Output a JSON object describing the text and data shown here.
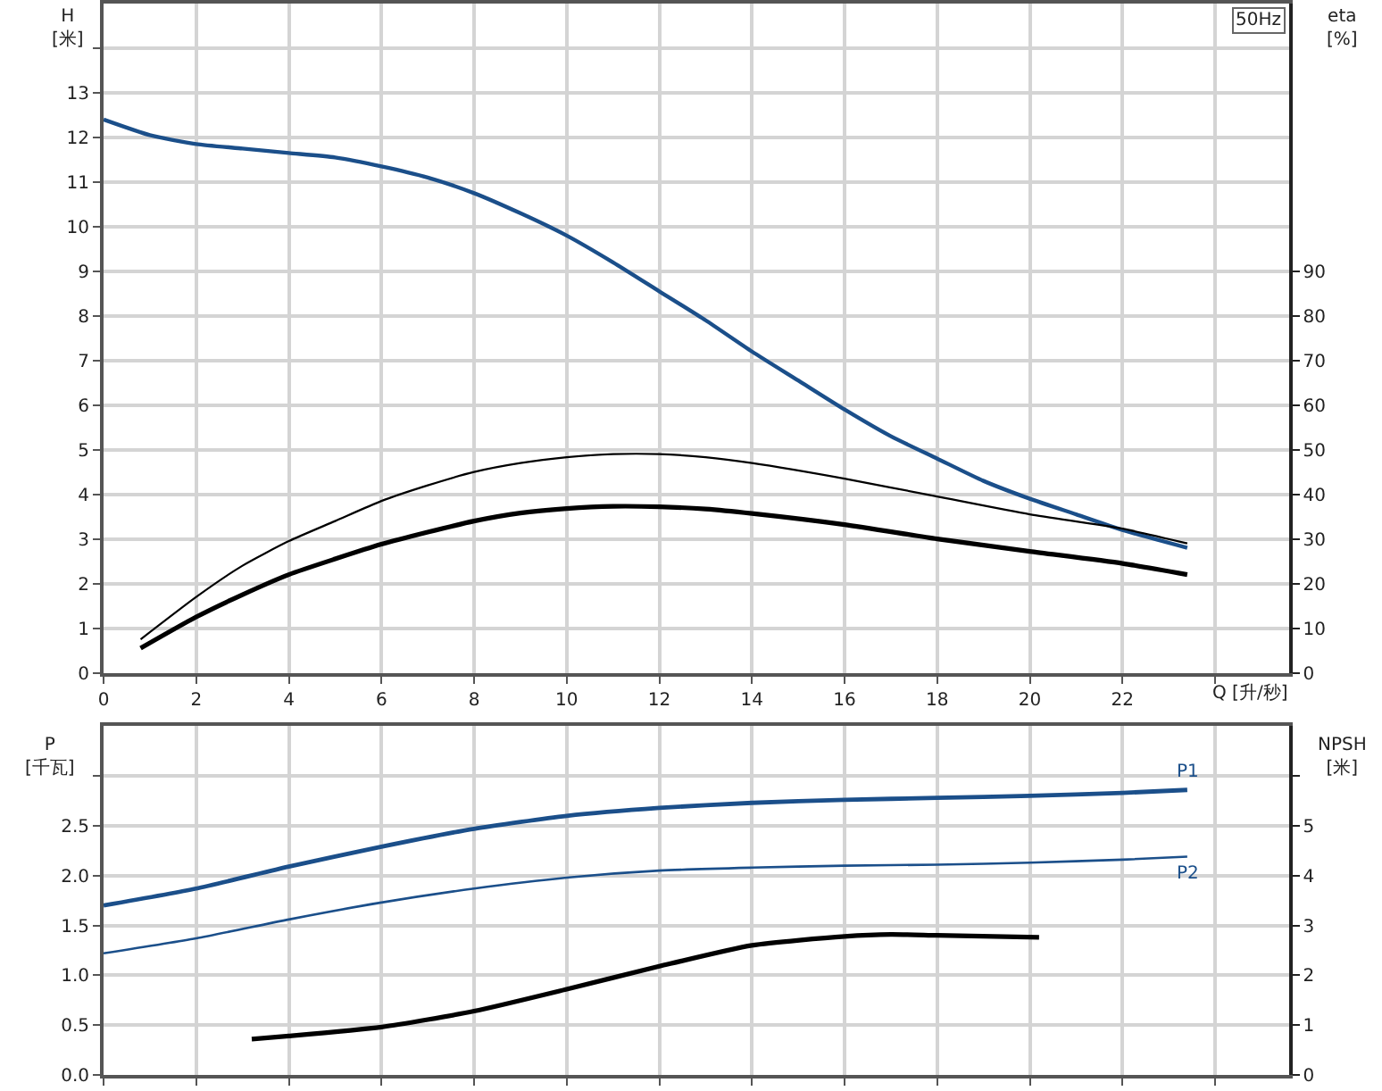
{
  "chart_data": [
    {
      "type": "line",
      "xlabel": "Q [升/秒]",
      "ylabel": "H\n[米]",
      "y2label": "eta\n[%]",
      "annotations": [
        "50Hz"
      ],
      "xlim": [
        0,
        25.6
      ],
      "xticks": [
        0,
        2,
        4,
        6,
        8,
        10,
        12,
        14,
        16,
        18,
        20,
        22,
        {
          "value": 24,
          "label": null
        }
      ],
      "ylim": [
        0,
        15
      ],
      "yticks": [
        0,
        1,
        2,
        3,
        4,
        5,
        6,
        7,
        8,
        9,
        10,
        11,
        12,
        13,
        {
          "value": 14,
          "label": null
        }
      ],
      "y2lim": [
        0,
        150
      ],
      "y2ticks": [
        0,
        10,
        20,
        30,
        40,
        50,
        60,
        70,
        80,
        90
      ],
      "grid": true,
      "series": [
        {
          "color": "#1b4f8a",
          "x": [
            0,
            1,
            2,
            3,
            4,
            5,
            6,
            7,
            8,
            9,
            10,
            11,
            12,
            13,
            14,
            15,
            16,
            17,
            18,
            19,
            20,
            21,
            22,
            23.4
          ],
          "values": [
            12.4,
            12.05,
            11.85,
            11.75,
            11.65,
            11.55,
            11.35,
            11.1,
            10.75,
            10.3,
            9.8,
            9.2,
            8.55,
            7.9,
            7.2,
            6.55,
            5.9,
            5.3,
            4.8,
            4.3,
            3.9,
            3.55,
            3.2,
            2.8
          ]
        },
        {
          "color": "#000000",
          "axis": "y2",
          "x": [
            0.8,
            2,
            3,
            4,
            5,
            6,
            7,
            8,
            9,
            10,
            11,
            12,
            13,
            14,
            16,
            18,
            20,
            22,
            23.4
          ],
          "values": [
            7.5,
            17,
            24,
            29.5,
            34,
            38.5,
            42,
            45,
            47,
            48.3,
            49,
            49,
            48.3,
            47,
            43.5,
            39.5,
            35.5,
            32.3,
            29
          ]
        },
        {
          "color": "#000000",
          "axis": "y2",
          "x": [
            0.8,
            2,
            3,
            4,
            5,
            6,
            7,
            8,
            9,
            10,
            11,
            12,
            13,
            14,
            16,
            18,
            20,
            22,
            23.4
          ],
          "values": [
            5.5,
            12.5,
            17.5,
            22,
            25.5,
            28.8,
            31.5,
            34,
            35.8,
            36.8,
            37.3,
            37.2,
            36.7,
            35.7,
            33.2,
            30,
            27.2,
            24.5,
            22
          ]
        }
      ]
    },
    {
      "type": "line",
      "ylabel": "P\n[千瓦]",
      "y2label": "NPSH\n[米]",
      "tick_labels": "y",
      "xlim": [
        0,
        25.6
      ],
      "xticks": [
        0,
        2,
        4,
        6,
        8,
        10,
        12,
        14,
        16,
        18,
        20,
        22,
        24
      ],
      "ylim": [
        0,
        3.5
      ],
      "yticks": [
        {
          "value": 0,
          "label": "0.0"
        },
        0.5,
        {
          "value": 1,
          "label": "1.0"
        },
        1.5,
        {
          "value": 2,
          "label": "2.0"
        },
        2.5,
        {
          "value": 3,
          "label": null
        }
      ],
      "y2lim": [
        0,
        7
      ],
      "y2ticks": [
        0,
        1,
        2,
        3,
        4,
        5,
        {
          "value": 6,
          "label": null
        }
      ],
      "grid": true,
      "series": [
        {
          "name": "P1",
          "color": "#1b4f8a",
          "x": [
            0,
            2,
            4,
            6,
            8,
            10,
            12,
            14,
            16,
            18,
            20,
            22,
            23.4
          ],
          "values": [
            1.7,
            1.87,
            2.09,
            2.29,
            2.47,
            2.6,
            2.68,
            2.73,
            2.76,
            2.78,
            2.8,
            2.83,
            2.86
          ]
        },
        {
          "name": "P2",
          "color": "#1b4f8a",
          "x": [
            0,
            2,
            4,
            6,
            8,
            10,
            12,
            14,
            16,
            18,
            20,
            22,
            23.4
          ],
          "values": [
            1.22,
            1.37,
            1.56,
            1.73,
            1.87,
            1.98,
            2.05,
            2.08,
            2.1,
            2.11,
            2.13,
            2.16,
            2.19
          ]
        },
        {
          "color": "#000000",
          "axis": "y2",
          "x": [
            3.2,
            4,
            6,
            8,
            10,
            12,
            14,
            16,
            17,
            18,
            20.2
          ],
          "values": [
            0.72,
            0.78,
            0.96,
            1.28,
            1.72,
            2.18,
            2.6,
            2.78,
            2.82,
            2.8,
            2.76
          ]
        }
      ]
    }
  ]
}
